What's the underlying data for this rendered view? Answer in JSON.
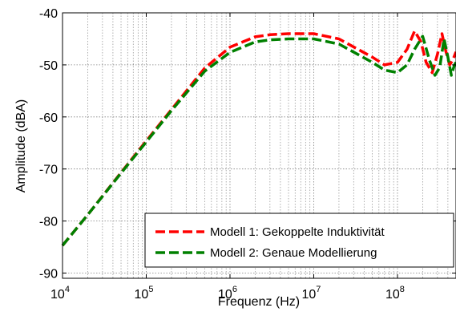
{
  "chart_data": {
    "type": "line",
    "title": "",
    "xlabel": "Frequenz (Hz)",
    "ylabel": "Amplitude (dBA)",
    "xscale": "log",
    "xlim": [
      10000,
      500000000
    ],
    "ylim": [
      -91,
      -40
    ],
    "grid": true,
    "legend_position": "lower-right",
    "x_ticks": [
      {
        "value": 10000,
        "base": "10",
        "exp": "4"
      },
      {
        "value": 100000,
        "base": "10",
        "exp": "5"
      },
      {
        "value": 1000000,
        "base": "10",
        "exp": "6"
      },
      {
        "value": 10000000,
        "base": "10",
        "exp": "7"
      },
      {
        "value": 100000000,
        "base": "10",
        "exp": "8"
      }
    ],
    "y_ticks": [
      {
        "value": -90,
        "label": "-90"
      },
      {
        "value": -80,
        "label": "-80"
      },
      {
        "value": -70,
        "label": "-70"
      },
      {
        "value": -60,
        "label": "-60"
      },
      {
        "value": -50,
        "label": "-50"
      },
      {
        "value": -40,
        "label": "-40"
      }
    ],
    "series": [
      {
        "name": "Modell 1: Gekoppelte Induktivität",
        "color": "#ff0000",
        "style": "dashed",
        "x": [
          10000,
          20000,
          50000,
          100000,
          200000,
          500000,
          1000000,
          2000000,
          3000000,
          5000000,
          10000000,
          20000000,
          50000000,
          70000000,
          100000000,
          130000000,
          160000000,
          190000000,
          220000000,
          260000000,
          300000000,
          340000000,
          380000000,
          420000000,
          460000000,
          500000000
        ],
        "y": [
          -84.7,
          -78.8,
          -70.7,
          -64.6,
          -58.6,
          -50.6,
          -46.6,
          -44.6,
          -44.2,
          -44.0,
          -44.0,
          -45.0,
          -48.5,
          -50.0,
          -49.5,
          -47.0,
          -43.5,
          -45.5,
          -49.5,
          -51.5,
          -48.0,
          -44.0,
          -47.5,
          -50.0,
          -49.0,
          -47.5
        ]
      },
      {
        "name": "Modell 2: Genaue Modellierung",
        "color": "#008000",
        "style": "dashed",
        "x": [
          10000,
          20000,
          50000,
          100000,
          200000,
          500000,
          1000000,
          2000000,
          3000000,
          5000000,
          10000000,
          20000000,
          50000000,
          70000000,
          100000000,
          130000000,
          160000000,
          200000000,
          240000000,
          280000000,
          320000000,
          360000000,
          400000000,
          440000000,
          480000000,
          500000000
        ],
        "y": [
          -84.7,
          -78.8,
          -70.8,
          -64.8,
          -58.8,
          -51.2,
          -47.6,
          -45.6,
          -45.2,
          -45.0,
          -45.0,
          -46.0,
          -49.5,
          -51.0,
          -51.5,
          -50.0,
          -47.0,
          -44.5,
          -49.0,
          -52.0,
          -50.5,
          -45.0,
          -48.5,
          -52.0,
          -50.0,
          -49.5
        ]
      }
    ]
  }
}
